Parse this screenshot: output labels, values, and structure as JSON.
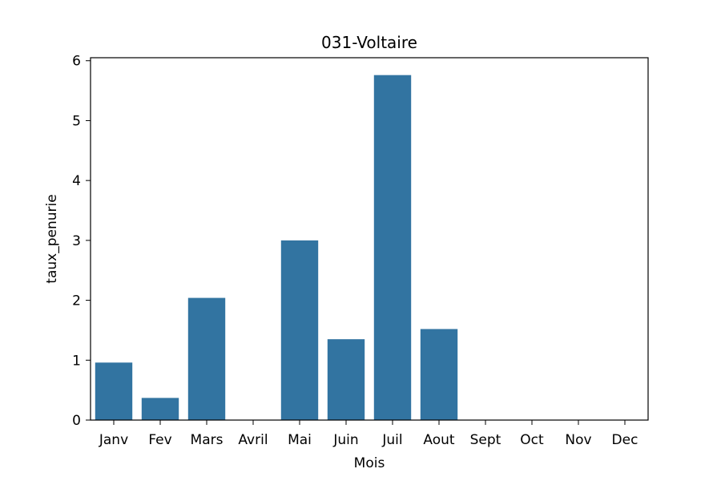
{
  "chart_data": {
    "type": "bar",
    "title": "031-Voltaire",
    "xlabel": "Mois",
    "ylabel": "taux_penurie",
    "categories": [
      "Janv",
      "Fev",
      "Mars",
      "Avril",
      "Mai",
      "Juin",
      "Juil",
      "Aout",
      "Sept",
      "Oct",
      "Nov",
      "Dec"
    ],
    "values": [
      0.96,
      0.37,
      2.04,
      0,
      3.0,
      1.35,
      5.76,
      1.52,
      0,
      0,
      0,
      0
    ],
    "ylim": [
      0,
      6.05
    ],
    "yticks": [
      0,
      1,
      2,
      3,
      4,
      5,
      6
    ],
    "grid": false,
    "legend": "none",
    "colors": {
      "bar": "#3274a1",
      "axis": "#000000",
      "background": "#ffffff"
    }
  }
}
